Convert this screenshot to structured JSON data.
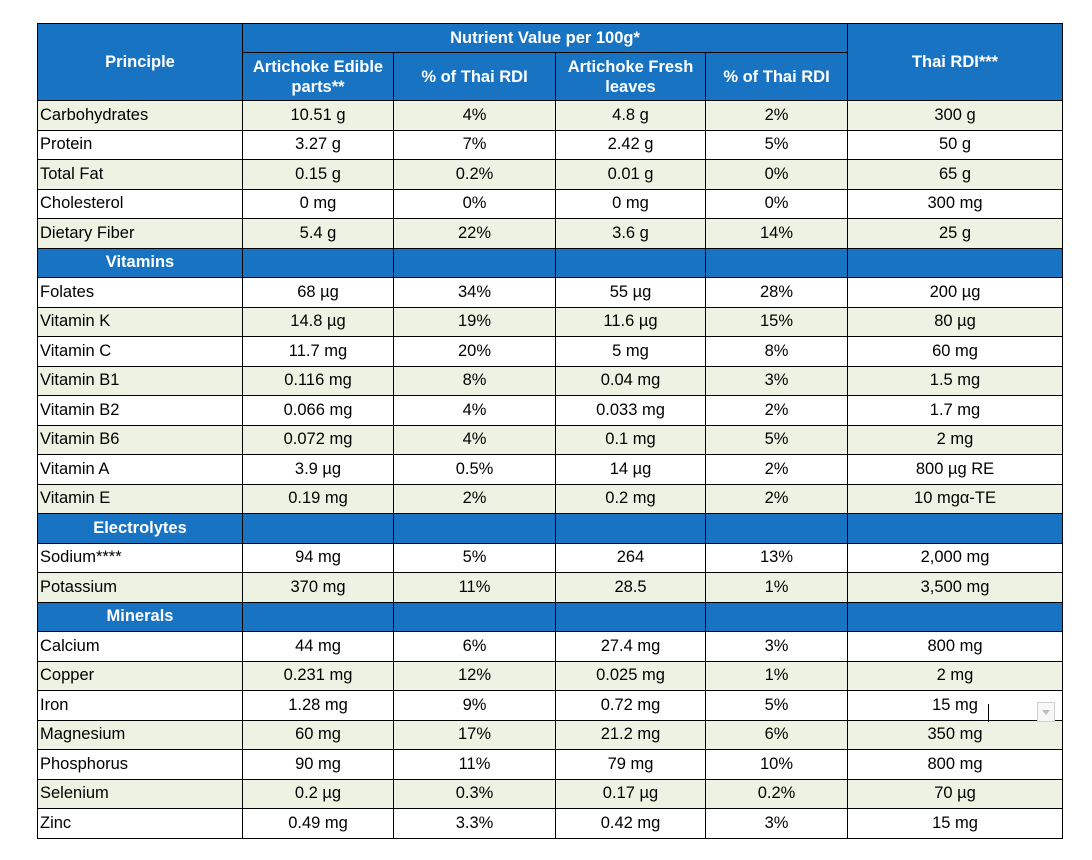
{
  "header": {
    "principle": "Principle",
    "group": "Nutrient Value per 100g*",
    "edible": "Artichoke Edible parts**",
    "pct1": "% of Thai RDI",
    "fresh": "Artichoke Fresh leaves",
    "pct2": "% of Thai RDI",
    "rdi": "Thai RDI***"
  },
  "sections": [
    {
      "title": "",
      "rows": [
        [
          "Carbohydrates",
          "10.51 g",
          "4%",
          "4.8 g",
          "2%",
          "300 g"
        ],
        [
          "Protein",
          "3.27 g",
          "7%",
          "2.42 g",
          "5%",
          "50 g"
        ],
        [
          "Total Fat",
          "0.15 g",
          "0.2%",
          "0.01 g",
          "0%",
          "65 g"
        ],
        [
          "Cholesterol",
          "0 mg",
          "0%",
          "0 mg",
          "0%",
          "300 mg"
        ],
        [
          "Dietary Fiber",
          "5.4 g",
          "22%",
          "3.6 g",
          "14%",
          "25 g"
        ]
      ]
    },
    {
      "title": "Vitamins",
      "rows": [
        [
          "Folates",
          "68 µg",
          "34%",
          "55 µg",
          "28%",
          "200 µg"
        ],
        [
          "Vitamin K",
          "14.8 µg",
          "19%",
          "11.6 µg",
          "15%",
          "80 µg"
        ],
        [
          "Vitamin C",
          "11.7 mg",
          "20%",
          "5 mg",
          "8%",
          "60 mg"
        ],
        [
          "Vitamin B1",
          "0.116 mg",
          "8%",
          "0.04 mg",
          "3%",
          "1.5 mg"
        ],
        [
          "Vitamin B2",
          "0.066 mg",
          "4%",
          "0.033 mg",
          "2%",
          "1.7 mg"
        ],
        [
          "Vitamin B6",
          "0.072 mg",
          "4%",
          "0.1 mg",
          "5%",
          "2 mg"
        ],
        [
          "Vitamin A",
          "3.9 µg",
          "0.5%",
          "14 µg",
          "2%",
          "800 µg RE"
        ],
        [
          "Vitamin E",
          "0.19 mg",
          "2%",
          "0.2 mg",
          "2%",
          "10 mgα-TE"
        ]
      ]
    },
    {
      "title": "Electrolytes",
      "rows": [
        [
          "Sodium****",
          "94 mg",
          "5%",
          "264",
          "13%",
          "2,000 mg"
        ],
        [
          "Potassium",
          "370 mg",
          "11%",
          "28.5",
          "1%",
          "3,500 mg"
        ]
      ]
    },
    {
      "title": "Minerals",
      "rows": [
        [
          "Calcium",
          "44 mg",
          "6%",
          "27.4 mg",
          "3%",
          "800 mg"
        ],
        [
          "Copper",
          "0.231 mg",
          "12%",
          "0.025 mg",
          "1%",
          "2 mg"
        ],
        [
          "Iron",
          "1.28 mg",
          "9%",
          "0.72 mg",
          "5%",
          "15 mg"
        ],
        [
          "Magnesium",
          "60 mg",
          "17%",
          "21.2 mg",
          "6%",
          "350 mg"
        ],
        [
          "Phosphorus",
          "90 mg",
          "11%",
          "79 mg",
          "10%",
          "800 mg"
        ],
        [
          "Selenium",
          "0.2 µg",
          "0.3%",
          "0.17 µg",
          "0.2%",
          "70 µg"
        ],
        [
          "Zinc",
          "0.49 mg",
          "3.3%",
          "0.42 mg",
          "3%",
          "15 mg"
        ]
      ]
    }
  ],
  "colors": {
    "header_blue": "#1874c3",
    "row_tint": "#eef2e2",
    "border": "#000000"
  },
  "icons": {
    "dropdown": "chevron-down-icon"
  }
}
